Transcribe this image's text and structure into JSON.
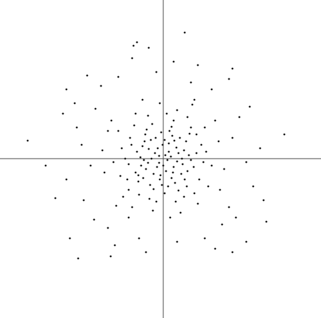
{
  "chart_data": {
    "type": "scatter",
    "color": "#1a1a1a",
    "xlim": [
      -236,
      228
    ],
    "ylim": [
      -230,
      229
    ],
    "x": [
      3,
      -12,
      20,
      -25,
      8,
      -5,
      30,
      -18,
      14,
      -33,
      0,
      24,
      -8,
      11,
      -22,
      35,
      -3,
      17,
      -40,
      6,
      -14,
      28,
      -30,
      2,
      -9,
      19,
      -26,
      12,
      37,
      -2,
      -17,
      9,
      31,
      -36,
      22,
      -6,
      15,
      -21,
      4,
      -11,
      26,
      -38,
      13,
      -29,
      33,
      -1,
      7,
      -19,
      40,
      -32,
      55,
      -60,
      45,
      -50,
      20,
      -15,
      70,
      -72,
      35,
      -40,
      60,
      -65,
      50,
      -45,
      10,
      -5,
      80,
      -85,
      25,
      -30,
      65,
      -58,
      42,
      -75,
      88,
      -88,
      15,
      -20,
      58,
      -55,
      48,
      -48,
      30,
      -35,
      75,
      -68,
      5,
      -10,
      62,
      -62,
      40,
      -42,
      52,
      -52,
      18,
      -22,
      82,
      -80,
      45,
      -50,
      100,
      -105,
      95,
      -98,
      40,
      -35,
      120,
      -118,
      70,
      -80,
      110,
      -115,
      20,
      -10,
      130,
      -125,
      85,
      -90,
      60,
      -65,
      140,
      -140,
      105,
      -100,
      15,
      -25,
      125,
      -128,
      75,
      -70,
      145,
      -145,
      95,
      -110,
      50,
      -45,
      -196,
      31,
      -123,
      -43,
      -76,
      149,
      -156,
      -38,
      -21,
      100,
      -170,
      175,
      100,
      -135,
      -140,
      120,
      -28,
      16,
      -4,
      44,
      -46,
      12,
      -14,
      34,
      -24,
      2,
      48,
      -50,
      22,
      -36,
      38,
      -16,
      8,
      -6,
      27,
      -27
    ],
    "values": [
      5,
      8,
      -4,
      -15,
      22,
      -30,
      12,
      27,
      -20,
      2,
      -10,
      30,
      15,
      3,
      -6,
      -18,
      38,
      -35,
      -20,
      -2,
      -22,
      -8,
      18,
      27,
      -12,
      16,
      35,
      -28,
      5,
      -38,
      0,
      40,
      -30,
      -33,
      8,
      4,
      -12,
      14,
      -18,
      30,
      -22,
      10,
      33,
      -28,
      25,
      20,
      -40,
      -38,
      -2,
      -10,
      20,
      15,
      -50,
      -45,
      70,
      -75,
      -10,
      -5,
      60,
      65,
      45,
      40,
      -65,
      -70,
      -85,
      80,
      25,
      -20,
      -78,
      85,
      -40,
      -55,
      78,
      55,
      -15,
      12,
      55,
      -58,
      -5,
      0,
      35,
      30,
      -55,
      -52,
      55,
      -68,
      65,
      -62,
      10,
      -25,
      45,
      48,
      -30,
      -30,
      -62,
      62,
      -45,
      40,
      85,
      -85,
      30,
      -10,
      -70,
      72,
      110,
      -115,
      -5,
      20,
      100,
      -100,
      60,
      -60,
      -120,
      125,
      -40,
      45,
      -95,
      105,
      -115,
      118,
      15,
      -30,
      -85,
      -88,
      140,
      -135,
      75,
      80,
      -130,
      -125,
      -60,
      65,
      115,
      120,
      135,
      145,
      26,
      182,
      -144,
      163,
      -141,
      -91,
      -57,
      168,
      160,
      130,
      -10,
      35,
      -135,
      -115,
      100,
      -120,
      -2,
      26,
      -24,
      -12,
      20,
      46,
      -44,
      -40,
      42,
      -50,
      8,
      -8,
      -46,
      -24,
      36,
      50,
      10,
      -6,
      0,
      25
    ]
  }
}
